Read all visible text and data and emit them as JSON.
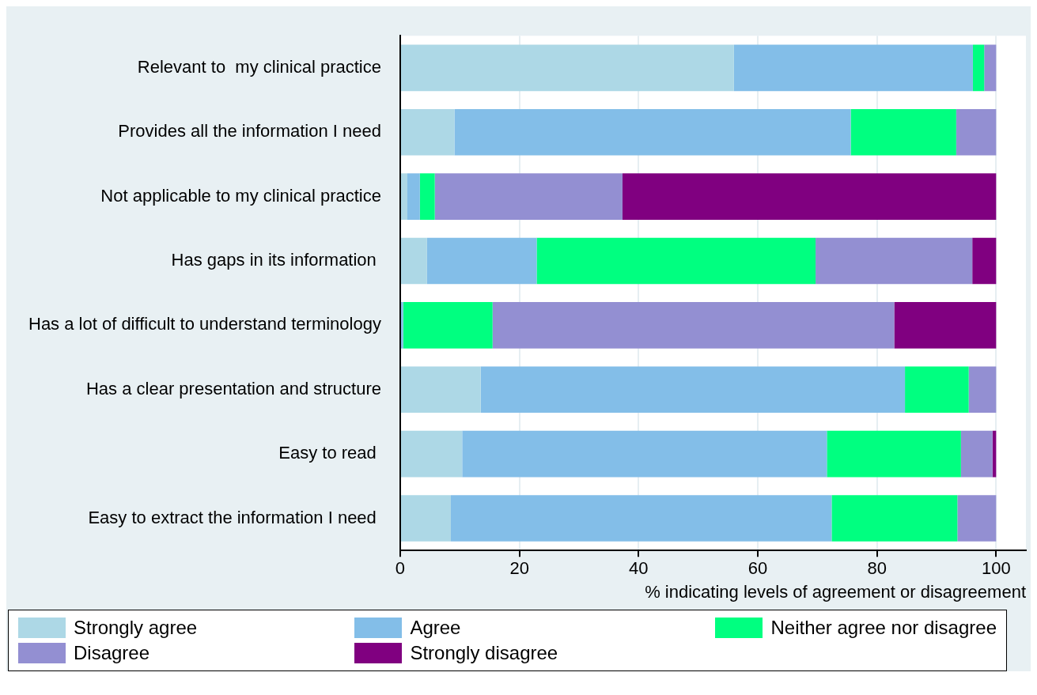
{
  "chart_data": {
    "type": "bar",
    "orientation": "horizontal",
    "stacked": true,
    "xlabel": "% indicating levels of agreement or disagreement",
    "categories": [
      "Relevant to  my clinical practice",
      "Provides all the information I need",
      "Not applicable to my clinical practice",
      "Has gaps in its information ",
      "Has a lot of difficult to understand terminology",
      "Has a clear presentation and structure",
      "Easy to read ",
      "Easy to extract the information I need "
    ],
    "series": [
      {
        "name": "Strongly agree",
        "color": "#add8e6",
        "values": [
          56,
          9.1,
          1.2,
          4.5,
          0,
          13.5,
          10.4,
          8.5
        ]
      },
      {
        "name": "Agree",
        "color": "#83bee8",
        "values": [
          40.1,
          66.5,
          2.1,
          18.4,
          0.5,
          71.2,
          61.2,
          63.9
        ]
      },
      {
        "name": "Neither agree nor disagree",
        "color": "#00ff80",
        "values": [
          1.9,
          17.7,
          2.5,
          46.8,
          15,
          10.7,
          22.5,
          21.1
        ]
      },
      {
        "name": "Disagree",
        "color": "#938fd2",
        "values": [
          2,
          6.7,
          31.5,
          26.3,
          67.4,
          4.6,
          5.3,
          6.5
        ]
      },
      {
        "name": "Strongly disagree",
        "color": "#800080",
        "values": [
          0,
          0,
          62.7,
          4,
          17.1,
          0,
          0.6,
          0
        ]
      }
    ],
    "xlim": [
      0,
      105
    ],
    "xticks": [
      0,
      20,
      40,
      60,
      80,
      100
    ],
    "grid": "x",
    "legend": "bottom"
  }
}
